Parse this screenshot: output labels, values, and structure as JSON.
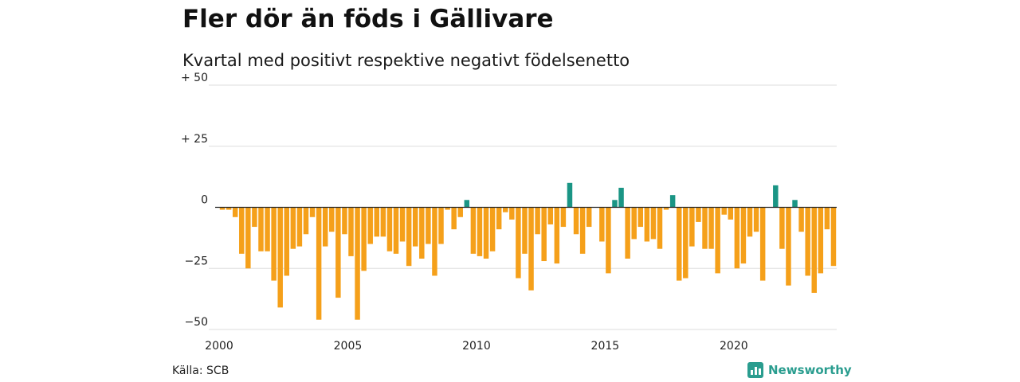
{
  "header": {
    "title": "Fler dör än föds i Gällivare",
    "subtitle": "Kvartal med positivt respektive negativt födelsenetto"
  },
  "footer": {
    "source": "Källa: SCB",
    "brand": "Newsworthy"
  },
  "colors": {
    "positive": "#1a9585",
    "negative": "#f5a01a",
    "grid": "#dddddd",
    "zero_line": "#222222"
  },
  "chart_data": {
    "type": "bar",
    "x_start": 2000.0,
    "x_step": 0.25,
    "xlim": [
      2000,
      2024
    ],
    "ylim": [
      -50,
      50
    ],
    "yticks": [
      {
        "value": 50,
        "label": "+ 50"
      },
      {
        "value": 25,
        "label": "+ 25"
      },
      {
        "value": 0,
        "label": "0"
      },
      {
        "value": -25,
        "label": "−25"
      },
      {
        "value": -50,
        "label": "−50"
      }
    ],
    "xticks": [
      {
        "value": 2000,
        "label": "2000"
      },
      {
        "value": 2005,
        "label": "2005"
      },
      {
        "value": 2010,
        "label": "2010"
      },
      {
        "value": 2015,
        "label": "2015"
      },
      {
        "value": 2020,
        "label": "2020"
      }
    ],
    "values": [
      -1,
      -1,
      -4,
      -19,
      -25,
      -8,
      -18,
      -18,
      -30,
      -41,
      -28,
      -17,
      -16,
      -11,
      -4,
      -46,
      -16,
      -10,
      -37,
      -11,
      -20,
      -46,
      -26,
      -15,
      -12,
      -12,
      -18,
      -19,
      -14,
      -24,
      -16,
      -21,
      -15,
      -28,
      -15,
      -1,
      -9,
      -4,
      3,
      -19,
      -20,
      -21,
      -18,
      -9,
      -2,
      -5,
      -29,
      -19,
      -34,
      -11,
      -22,
      -7,
      -23,
      -8,
      10,
      -11,
      -19,
      -8,
      0,
      -14,
      -27,
      3,
      8,
      -21,
      -13,
      -8,
      -14,
      -13,
      -17,
      -1,
      5,
      -30,
      -29,
      -16,
      -6,
      -17,
      -17,
      -27,
      -3,
      -5,
      -25,
      -23,
      -12,
      -10,
      -30,
      0,
      9,
      -17,
      -32,
      3,
      -10,
      -28,
      -35,
      -27,
      -9,
      -24
    ]
  }
}
